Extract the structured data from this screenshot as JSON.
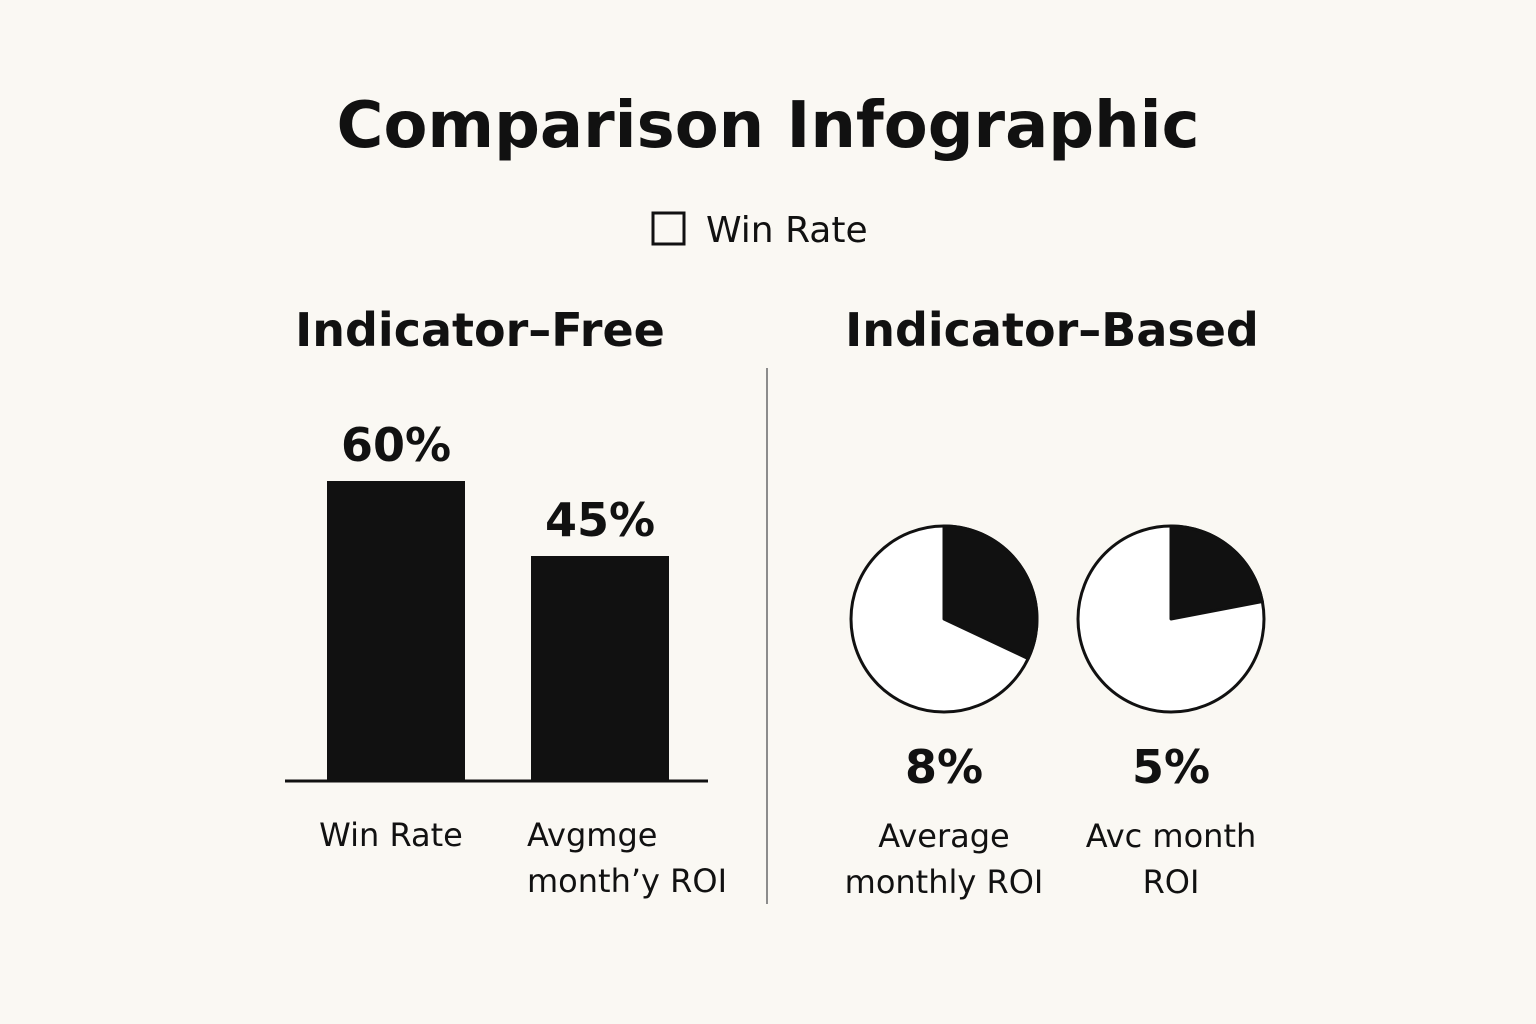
{
  "title": "Comparison Infographic",
  "legend": {
    "label": "Win Rate",
    "marker": "hollow-square"
  },
  "colors": {
    "background": "#faf8f3",
    "ink": "#111111",
    "divider": "#8c8c8c",
    "pie_empty": "#ffffff"
  },
  "chart_data": [
    {
      "type": "bar",
      "title": "Indicator–Free",
      "categories": [
        [
          "Win Rate"
        ],
        [
          "Avgmge",
          "monthʼy ROI"
        ]
      ],
      "values": [
        60,
        45
      ],
      "value_labels": [
        "60%",
        "45%"
      ],
      "unit": "%",
      "ylim": [
        0,
        66
      ],
      "grid": false
    },
    {
      "type": "pie",
      "title": "Indicator–Based",
      "slices": [
        {
          "value": 8,
          "fraction": 0.32,
          "value_label": "8%",
          "label": [
            "Average",
            "monthly ROI"
          ]
        },
        {
          "value": 5,
          "fraction": 0.22,
          "value_label": "5%",
          "label": [
            "Avc month",
            "ROI"
          ]
        }
      ]
    }
  ]
}
